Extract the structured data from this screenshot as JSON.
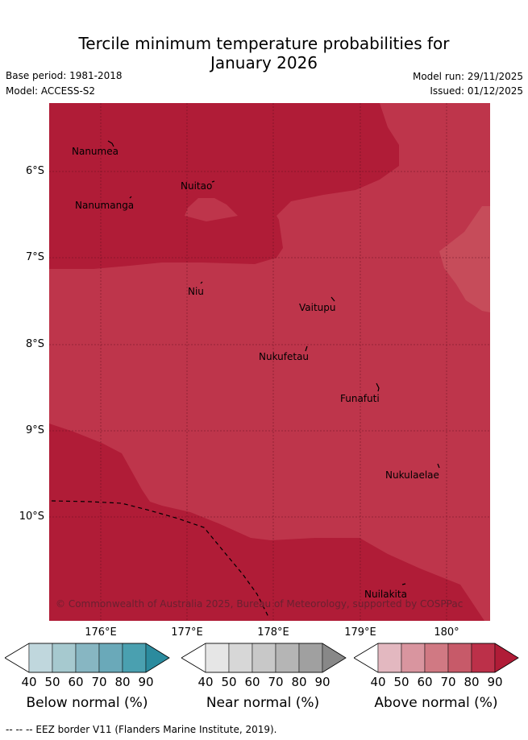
{
  "header": {
    "title_line1": "Tercile minimum temperature probabilities for",
    "title_line2": "January 2026",
    "base_period": "Base period: 1981-2018",
    "model": "Model: ACCESS-S2",
    "model_run": "Model run: 29/11/2025",
    "issued": "Issued: 01/12/2025"
  },
  "map": {
    "lat_labels": [
      "6°S",
      "7°S",
      "8°S",
      "9°S",
      "10°S"
    ],
    "lon_labels": [
      "176°E",
      "177°E",
      "178°E",
      "179°E",
      "180°"
    ],
    "places": [
      "Nanumea",
      "Nuitao",
      "Nanumanga",
      "Niu",
      "Vaitupu",
      "Nukufetau",
      "Funafuti",
      "Nukulaelae",
      "Nuilakita"
    ],
    "copyright": "© Commonwealth of Australia 2025, Bureau of Meteorology, supported by COSPPac",
    "colors": {
      "above_80_90": "#b01c37",
      "above_70_80": "#be354b",
      "above_60_70": "#c64c5a"
    }
  },
  "legends": [
    {
      "title": "Below normal (%)",
      "ticks": [
        "40",
        "50",
        "60",
        "70",
        "80",
        "90"
      ],
      "colors": [
        "#ffffff",
        "#c0d7dd",
        "#a6c9cf",
        "#87b6c2",
        "#6aa9b9",
        "#4aa0b0",
        "#2b8b9e"
      ]
    },
    {
      "title": "Near normal (%)",
      "ticks": [
        "40",
        "50",
        "60",
        "70",
        "80",
        "90"
      ],
      "colors": [
        "#ffffff",
        "#e6e6e6",
        "#d7d7d7",
        "#c8c8c8",
        "#b5b5b5",
        "#a0a0a0",
        "#888888"
      ]
    },
    {
      "title": "Above normal (%)",
      "ticks": [
        "40",
        "50",
        "60",
        "70",
        "80",
        "90"
      ],
      "colors": [
        "#ffffff",
        "#e3b8c0",
        "#d9959f",
        "#d07983",
        "#c75a69",
        "#bc3049",
        "#b01c37"
      ]
    }
  ],
  "footer": "--  --  -- EEZ border V11 (Flanders Marine Institute, 2019)."
}
